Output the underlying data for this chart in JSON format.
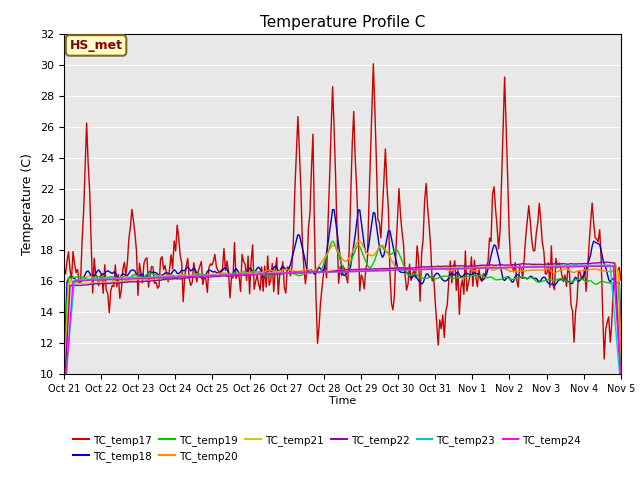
{
  "title": "Temperature Profile C",
  "xlabel": "Time",
  "ylabel": "Temperature (C)",
  "ylim": [
    10,
    32
  ],
  "yticks": [
    10,
    12,
    14,
    16,
    18,
    20,
    22,
    24,
    26,
    28,
    30,
    32
  ],
  "x_labels": [
    "Oct 21",
    "Oct 22",
    "Oct 23",
    "Oct 24",
    "Oct 25",
    "Oct 26",
    "Oct 27",
    "Oct 28",
    "Oct 29",
    "Oct 30",
    "Oct 31",
    "Nov 1",
    "Nov 2",
    "Nov 3",
    "Nov 4",
    "Nov 5"
  ],
  "annotation": "HS_met",
  "bg_color": "#e8e8e8",
  "colors": {
    "TC_temp17": "#cc0000",
    "TC_temp18": "#0000cc",
    "TC_temp19": "#00cc00",
    "TC_temp20": "#ff8800",
    "TC_temp21": "#cccc00",
    "TC_temp22": "#9900aa",
    "TC_temp23": "#00cccc",
    "TC_temp24": "#ff00ff"
  }
}
